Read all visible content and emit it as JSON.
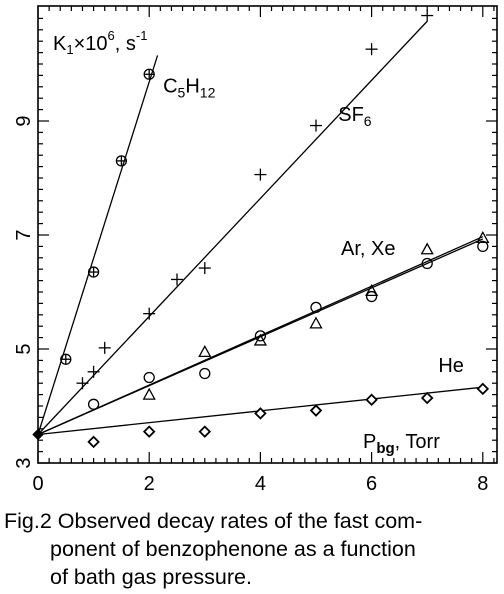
{
  "chart_data": {
    "type": "scatter",
    "xlim": [
      0,
      8.3
    ],
    "ylim": [
      3,
      10.8
    ],
    "x_ticks": [
      0,
      2,
      4,
      6,
      8
    ],
    "y_ticks": [
      3,
      5,
      7,
      9
    ],
    "x_tick_labels": [
      "0",
      "2",
      "4",
      "6",
      "8"
    ],
    "y_tick_labels": [
      "3",
      "5",
      "7",
      "9"
    ],
    "x_axis_label": {
      "main": "P",
      "sub": "bg",
      "tail": ", Torr"
    },
    "y_axis_label": {
      "main": "K",
      "sub": "1",
      "mid": "×10",
      "sup": "6",
      "tail": ", s",
      "sup2": "-1"
    },
    "grid": false,
    "series": [
      {
        "name": "C5H12",
        "marker": "circle-plus",
        "points": [
          [
            0,
            3.5
          ],
          [
            0.5,
            4.82
          ],
          [
            1.0,
            6.35
          ],
          [
            1.5,
            8.3
          ],
          [
            2.0,
            9.82
          ]
        ],
        "fit": [
          [
            0,
            3.5
          ],
          [
            2.15,
            10.15
          ]
        ]
      },
      {
        "name": "SF6",
        "marker": "plus",
        "points": [
          [
            0,
            3.5
          ],
          [
            0.8,
            4.4
          ],
          [
            1.0,
            4.6
          ],
          [
            1.2,
            5.02
          ],
          [
            2.0,
            5.62
          ],
          [
            2.5,
            6.22
          ],
          [
            3.0,
            6.42
          ],
          [
            4.0,
            8.06
          ],
          [
            5.0,
            8.92
          ],
          [
            6.0,
            10.26
          ],
          [
            7.0,
            10.85
          ]
        ],
        "fit": [
          [
            0,
            3.5
          ],
          [
            7.0,
            10.75
          ]
        ]
      },
      {
        "name": "Ar",
        "marker": "triangle",
        "points": [
          [
            0,
            3.5
          ],
          [
            2.0,
            4.2
          ],
          [
            3.0,
            4.95
          ],
          [
            4.0,
            5.15
          ],
          [
            5.0,
            5.45
          ],
          [
            6.0,
            6.02
          ],
          [
            7.0,
            6.75
          ],
          [
            8.0,
            6.95
          ]
        ],
        "fit": [
          [
            0,
            3.5
          ],
          [
            8.0,
            6.97
          ]
        ]
      },
      {
        "name": "Xe",
        "marker": "circle",
        "points": [
          [
            0,
            3.5
          ],
          [
            1.0,
            4.03
          ],
          [
            2.0,
            4.5
          ],
          [
            3.0,
            4.57
          ],
          [
            4.0,
            5.23
          ],
          [
            5.0,
            5.73
          ],
          [
            6.0,
            5.92
          ],
          [
            7.0,
            6.5
          ],
          [
            8.0,
            6.8
          ]
        ],
        "fit": [
          [
            0,
            3.5
          ],
          [
            8.0,
            6.93
          ]
        ]
      },
      {
        "name": "He",
        "marker": "diamond",
        "points": [
          [
            0,
            3.5
          ],
          [
            1.0,
            3.37
          ],
          [
            2.0,
            3.55
          ],
          [
            3.0,
            3.55
          ],
          [
            4.0,
            3.87
          ],
          [
            5.0,
            3.92
          ],
          [
            6.0,
            4.11
          ],
          [
            7.0,
            4.14
          ],
          [
            8.0,
            4.3
          ]
        ],
        "fit": [
          [
            0,
            3.5
          ],
          [
            8.0,
            4.33
          ]
        ]
      }
    ],
    "annotations": [
      {
        "id": "c5h12",
        "text": "C",
        "sub": "5",
        "text2": "H",
        "sub2": "12",
        "x": 2.25,
        "y": 9.5
      },
      {
        "id": "sf6",
        "text": "SF",
        "sub": "6",
        "x": 5.4,
        "y": 9.0
      },
      {
        "id": "arxe",
        "text": "Ar, Xe",
        "x": 5.45,
        "y": 6.65
      },
      {
        "id": "he",
        "text": "He",
        "x": 7.2,
        "y": 4.6
      }
    ]
  },
  "caption": {
    "line1": "Fig.2 Observed decay rates of the fast com-",
    "line2": "ponent of benzophenone as a function",
    "line3": "of bath gas pressure."
  }
}
